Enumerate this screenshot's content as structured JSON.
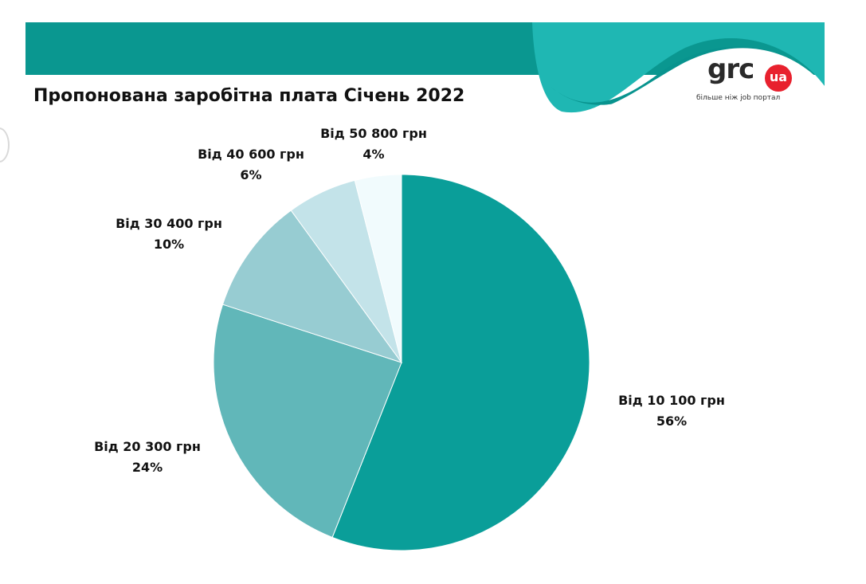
{
  "chart_data": {
    "type": "pie",
    "title": "Пропонована заробітна плата Січень 2022",
    "slices": [
      {
        "label": "Від 10 100 грн",
        "percent_label": "56%",
        "value": 56,
        "color": "#0a9e99"
      },
      {
        "label": "Від 20 300 грн",
        "percent_label": "24%",
        "value": 24,
        "color": "#61b7b9"
      },
      {
        "label": "Від 30 400 грн",
        "percent_label": "10%",
        "value": 10,
        "color": "#97ccd2"
      },
      {
        "label": "Від 40 600 грн",
        "percent_label": "6%",
        "value": 6,
        "color": "#c3e3e9"
      },
      {
        "label": "Від 50 800 грн",
        "percent_label": "4%",
        "value": 4,
        "color": "#f1fbfd"
      }
    ]
  },
  "logo": {
    "text": "grc",
    "badge": "ua",
    "tagline": "більше ніж job портал",
    "badge_color": "#e8212e"
  },
  "colors": {
    "header_band": "#0a9790",
    "header_wave": "#1fb7b3",
    "header_wave_dark": "#08938e"
  }
}
